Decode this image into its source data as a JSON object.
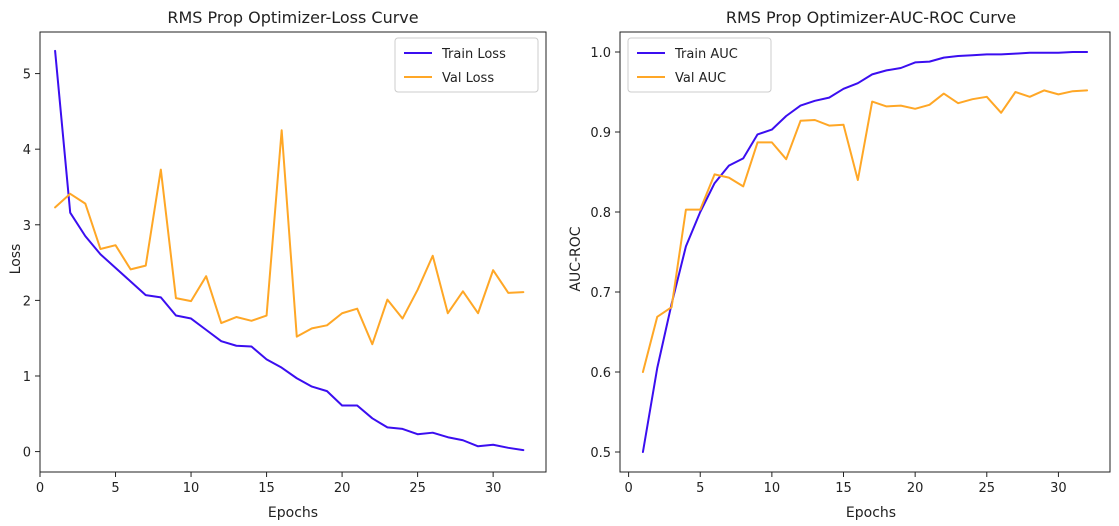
{
  "chart_data": [
    {
      "type": "line",
      "title": "RMS Prop Optimizer-Loss Curve",
      "xlabel": "Epochs",
      "ylabel": "Loss",
      "xlim": [
        0,
        33.5
      ],
      "ylim": [
        -0.27,
        5.55
      ],
      "xticks": [
        0,
        5,
        10,
        15,
        20,
        25,
        30
      ],
      "yticks": [
        0,
        1,
        2,
        3,
        4,
        5
      ],
      "grid": false,
      "legend_position": "top-right",
      "x": [
        1,
        2,
        3,
        4,
        5,
        6,
        7,
        8,
        9,
        10,
        11,
        12,
        13,
        14,
        15,
        16,
        17,
        18,
        19,
        20,
        21,
        22,
        23,
        24,
        25,
        26,
        27,
        28,
        29,
        30,
        31,
        32
      ],
      "series": [
        {
          "name": "Train Loss",
          "color": "#3b0ef0",
          "values": [
            5.3,
            3.16,
            2.85,
            2.61,
            2.43,
            2.25,
            2.07,
            2.04,
            1.8,
            1.76,
            1.61,
            1.46,
            1.4,
            1.39,
            1.22,
            1.11,
            0.97,
            0.86,
            0.8,
            0.61,
            0.61,
            0.44,
            0.32,
            0.3,
            0.23,
            0.25,
            0.19,
            0.15,
            0.07,
            0.09,
            0.05,
            0.02
          ]
        },
        {
          "name": "Val Loss",
          "color": "#ffa726",
          "values": [
            3.23,
            3.41,
            3.28,
            2.68,
            2.73,
            2.41,
            2.46,
            3.73,
            2.03,
            1.99,
            2.32,
            1.7,
            1.78,
            1.73,
            1.8,
            4.25,
            1.52,
            1.63,
            1.67,
            1.83,
            1.89,
            1.42,
            2.01,
            1.76,
            2.14,
            2.59,
            1.83,
            2.12,
            1.83,
            2.4,
            2.1,
            2.11
          ]
        }
      ]
    },
    {
      "type": "line",
      "title": "RMS Prop Optimizer-AUC-ROC Curve",
      "xlabel": "Epochs",
      "ylabel": "AUC-ROC",
      "xlim": [
        -0.6,
        33.6
      ],
      "ylim": [
        0.475,
        1.025
      ],
      "xticks": [
        0,
        5,
        10,
        15,
        20,
        25,
        30
      ],
      "yticks": [
        0.5,
        0.6,
        0.7,
        0.8,
        0.9,
        1.0
      ],
      "ytick_labels": [
        "0.5",
        "0.6",
        "0.7",
        "0.8",
        "0.9",
        "1.0"
      ],
      "grid": false,
      "legend_position": "top-left",
      "x": [
        1,
        2,
        3,
        4,
        5,
        6,
        7,
        8,
        9,
        10,
        11,
        12,
        13,
        14,
        15,
        16,
        17,
        18,
        19,
        20,
        21,
        22,
        23,
        24,
        25,
        26,
        27,
        28,
        29,
        30,
        31,
        32
      ],
      "series": [
        {
          "name": "Train AUC",
          "color": "#3b0ef0",
          "values": [
            0.5,
            0.605,
            0.685,
            0.757,
            0.8,
            0.836,
            0.858,
            0.867,
            0.897,
            0.903,
            0.92,
            0.933,
            0.939,
            0.943,
            0.954,
            0.961,
            0.972,
            0.977,
            0.98,
            0.987,
            0.988,
            0.993,
            0.995,
            0.996,
            0.997,
            0.997,
            0.998,
            0.999,
            0.999,
            0.999,
            1.0,
            1.0
          ]
        },
        {
          "name": "Val AUC",
          "color": "#ffa726",
          "values": [
            0.6,
            0.669,
            0.681,
            0.803,
            0.803,
            0.847,
            0.843,
            0.832,
            0.887,
            0.887,
            0.866,
            0.914,
            0.915,
            0.908,
            0.909,
            0.84,
            0.938,
            0.932,
            0.933,
            0.929,
            0.934,
            0.948,
            0.936,
            0.941,
            0.944,
            0.924,
            0.95,
            0.944,
            0.952,
            0.947,
            0.951,
            0.952
          ]
        }
      ]
    }
  ]
}
